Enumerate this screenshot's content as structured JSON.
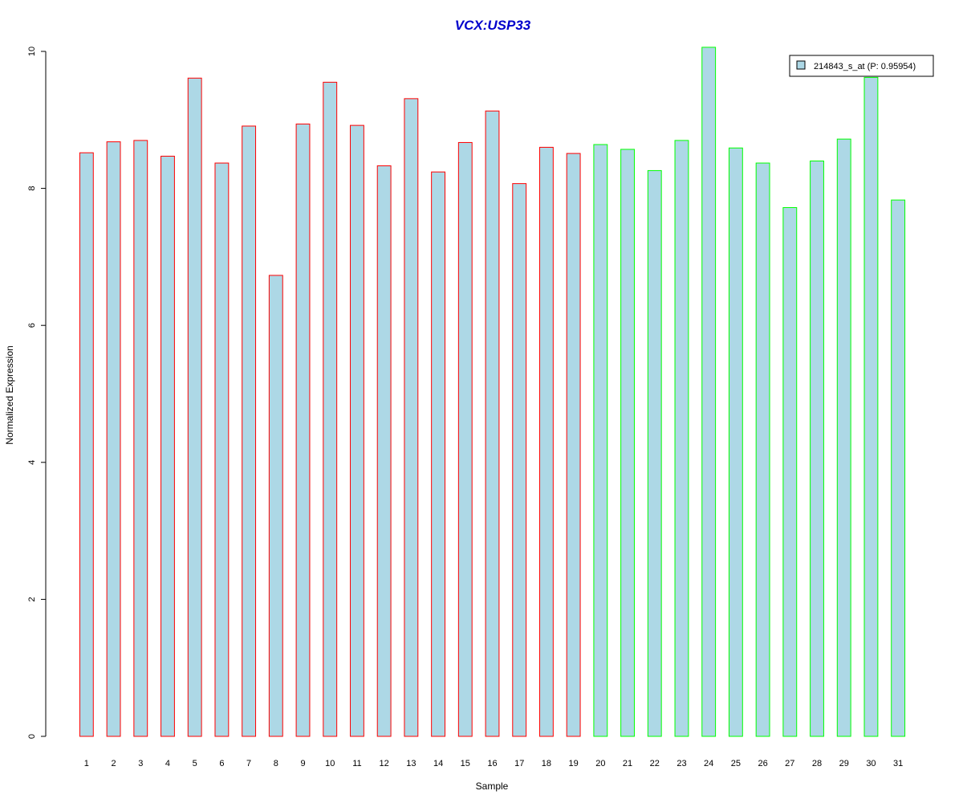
{
  "chart_data": {
    "type": "bar",
    "title": "VCX:USP33",
    "title_color": "#0000CC",
    "xlabel": "Sample",
    "ylabel": "Normalized Expression",
    "ylim": [
      0,
      10
    ],
    "yticks": [
      "0",
      "2",
      "4",
      "6",
      "8",
      "10"
    ],
    "categories": [
      "1",
      "2",
      "3",
      "4",
      "5",
      "6",
      "7",
      "8",
      "9",
      "10",
      "11",
      "12",
      "13",
      "14",
      "15",
      "16",
      "17",
      "18",
      "19",
      "20",
      "21",
      "22",
      "23",
      "24",
      "25",
      "26",
      "27",
      "28",
      "29",
      "30",
      "31"
    ],
    "values": [
      8.52,
      8.68,
      8.7,
      8.47,
      9.61,
      8.37,
      8.91,
      6.73,
      8.94,
      9.55,
      8.92,
      8.33,
      9.31,
      8.24,
      8.67,
      9.13,
      8.07,
      8.6,
      8.51,
      8.64,
      8.57,
      8.26,
      8.7,
      10.06,
      8.59,
      8.37,
      7.72,
      8.4,
      8.72,
      9.62,
      7.83
    ],
    "bar_fill": "#ADD8E6",
    "group_colors": {
      "group1": "#FF0000",
      "group2": "#00FF00"
    },
    "bar_groups": [
      "group1",
      "group1",
      "group1",
      "group1",
      "group1",
      "group1",
      "group1",
      "group1",
      "group1",
      "group1",
      "group1",
      "group1",
      "group1",
      "group1",
      "group1",
      "group1",
      "group1",
      "group1",
      "group1",
      "group2",
      "group2",
      "group2",
      "group2",
      "group2",
      "group2",
      "group2",
      "group2",
      "group2",
      "group2",
      "group2",
      "group2"
    ],
    "legend": {
      "label": "214843_s_at (P: 0.95954)",
      "placement": "top-right"
    },
    "grid": false
  }
}
